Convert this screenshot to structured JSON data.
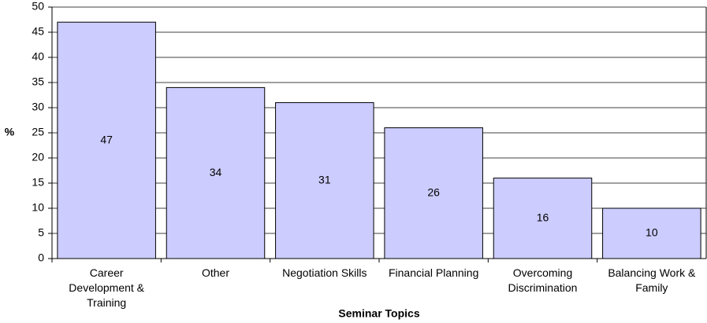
{
  "chart_data": {
    "type": "bar",
    "categories": [
      "Career Development & Training",
      "Other",
      "Negotiation Skills",
      "Financial Planning",
      "Overcoming Discrimination",
      "Balancing Work & Family"
    ],
    "values": [
      47,
      34,
      31,
      26,
      16,
      10
    ],
    "color": "#ccccff",
    "ylim": [
      0,
      50
    ],
    "yticks": [
      0,
      5,
      10,
      15,
      20,
      25,
      30,
      35,
      40,
      45,
      50
    ],
    "ylabel": "%",
    "xlabel": "Seminar Topics",
    "grid": true
  }
}
